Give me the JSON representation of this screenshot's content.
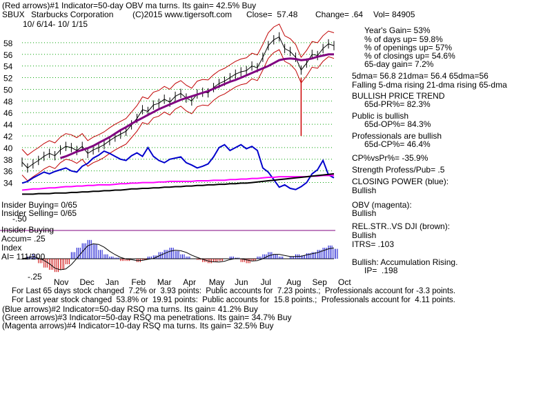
{
  "header": {
    "line1": "(Red arrows)#1 Indicator=50-day OBV ma turns. Its gain= 42.5% Buy",
    "ticker": "SBUX",
    "company": "Starbucks Corporation",
    "copyright": "(C)2015 www.tigersoft.com",
    "close": "Close=  57.48",
    "change": "Change= .64",
    "vol": "Vol= 84905",
    "daterange": "10/ 6/14- 10/ 1/15"
  },
  "stats": {
    "years_gain": "Year's Gain= 53%",
    "pct_days_up": "% of days up= 59.8%",
    "pct_openings_up": "% of openings up= 57%",
    "pct_closings_up": "% of closings up= 54.6%",
    "gain_65": "65-day gain= 7.2%",
    "dma": "5dma= 56.8 21dma= 56.4 65dma=56",
    "dma_trend": "Falling 5-dma rising 21-dma rising 65-dma",
    "trend_title": "BULLISH PRICE TREND",
    "pr_pct": "65d-PR%= 82.3%",
    "public_title": "Public is bullish",
    "op_pct": "65d-OP%= 84.3%",
    "prof_title": "Professionals are bullish",
    "cp_pct": "65d-CP%= 46.4%",
    "cpvspr": "CP%vsPr%= -35.9%",
    "strength": "Strength Profess/Pub= .5",
    "closing_power": "CLOSING POWER (blue):",
    "closing_power_val": "Bullish",
    "obv": "OBV (magenta):",
    "obv_val": "Bullish",
    "relstr": "REL.STR..VS DJI (brown):",
    "relstr_val": "Bullish",
    "itrs": "ITRS= .103",
    "accum": "Bullish: Accumulation Rising.",
    "ip": "IP=  .198"
  },
  "left_labels": {
    "insider1": "Insider Buying= 0/65",
    "insider2": "Insider Selling= 0/65",
    "insider_line_val": "-.50",
    "insider_buying": "Insider Buying",
    "accum": "Accum= .25",
    "index": "Index",
    "ai": "AI= 111/200",
    "neg25": "-.25"
  },
  "footer": {
    "l1": "For Last 65 days stock changed  7.2% or  3.93 points:  Public accounts for  7.23 points.;  Professionals account for -3.3 points.",
    "l2": "For Last year stock changed  53.8% or  19.91 points:  Public accounts for  15.8 points.;  Professionals account for  4.11 points.",
    "l3": "(Blue arrows)#2 Indicator=50-day RSQ ma turns. Its gain= 41.2% Buy",
    "l4": "(Green arrows)#3 Indicator=50-day RSQ ma penetrations. Its gain= 34.7% Buy",
    "l5": "(Magenta arrows)#4 Indicator=10-day RSQ ma turns. Its gain= 32.5% Buy"
  },
  "colors": {
    "price": "#000000",
    "ma65": "#800080",
    "band": "#c00000",
    "closing_power": "#0000cc",
    "obv": "#ff00ff",
    "relstr": "#000000",
    "ai_pos": "#0000cc",
    "ai_neg": "#cc0000",
    "grid": "#00a000"
  },
  "chart_data": {
    "type": "line",
    "title": "SBUX  Starbucks Corporation",
    "x_ticks": [
      "Nov",
      "Dec",
      "Jan",
      "Feb",
      "Mar",
      "Apr",
      "May",
      "Jun",
      "Jul",
      "Aug",
      "Sep",
      "Oct"
    ],
    "y_ticks": [
      34,
      36,
      38,
      40,
      42,
      44,
      46,
      48,
      50,
      52,
      54,
      56,
      58
    ],
    "ylim": [
      33,
      60
    ],
    "series": [
      {
        "key": "price",
        "values": [
          37.5,
          36.5,
          37.2,
          37.8,
          38.5,
          39.0,
          38.6,
          39.6,
          40.2,
          40.0,
          39.5,
          40.2,
          39.0,
          39.6,
          40.0,
          40.5,
          41.2,
          41.8,
          42.3,
          42.8,
          43.9,
          45.0,
          46.5,
          46.2,
          47.3,
          47.6,
          48.3,
          47.8,
          48.8,
          49.3,
          48.5,
          48.0,
          49.2,
          49.5,
          49.4,
          50.3,
          51.0,
          51.4,
          52.0,
          52.6,
          53.0,
          53.2,
          54.0,
          53.7,
          55.5,
          57.5,
          58.5,
          59.0,
          57.0,
          56.5,
          55.5,
          53.3,
          54.5,
          56.0,
          55.8,
          57.0,
          57.8,
          57.5
        ]
      },
      {
        "key": "ma65",
        "values": [
          null,
          null,
          null,
          null,
          null,
          null,
          null,
          38.2,
          38.5,
          38.9,
          39.3,
          39.6,
          39.9,
          40.3,
          40.8,
          41.3,
          41.8,
          42.4,
          43.0,
          43.5,
          44.1,
          44.6,
          45.1,
          45.6,
          46.1,
          46.6,
          47.0,
          47.4,
          47.8,
          48.2,
          48.5,
          48.8,
          49.1,
          49.4,
          49.7,
          50.1,
          50.5,
          50.9,
          51.3,
          51.6,
          52.0,
          52.4,
          52.8,
          53.2,
          53.6,
          54.0,
          54.5,
          55.0,
          55.2,
          55.3,
          55.2,
          55.0,
          55.1,
          55.3,
          55.6,
          55.8,
          56.0,
          56.0
        ]
      },
      {
        "key": "closing_power",
        "values": [
          33.9,
          34.2,
          34.8,
          35.3,
          35.8,
          35.5,
          35.9,
          36.2,
          36.5,
          36.0,
          35.8,
          36.8,
          37.3,
          38.2,
          38.7,
          39.4,
          39.0,
          38.5,
          38.0,
          37.8,
          38.6,
          39.1,
          38.5,
          40.0,
          38.5,
          37.8,
          37.4,
          38.0,
          38.2,
          38.4,
          37.4,
          37.0,
          36.5,
          36.8,
          37.2,
          38.4,
          40.0,
          40.5,
          39.5,
          40.0,
          40.5,
          39.8,
          40.2,
          39.5,
          36.5,
          35.8,
          34.5,
          33.2,
          33.6,
          33.0,
          32.8,
          33.3,
          34.0,
          35.5,
          36.2,
          37.8,
          35.3,
          34.8
        ]
      },
      {
        "key": "obv",
        "values": [
          32.7,
          32.8,
          32.9,
          32.9,
          33.0,
          33.1,
          33.1,
          33.2,
          33.3,
          33.3,
          33.4,
          33.4,
          33.5,
          33.5,
          33.6,
          33.6,
          33.6,
          33.7,
          33.8,
          33.8,
          33.9,
          33.9,
          34.0,
          34.0,
          34.0,
          34.1,
          34.1,
          34.2,
          34.2,
          34.2,
          34.2,
          34.2,
          34.3,
          34.3,
          34.3,
          34.4,
          34.4,
          34.4,
          34.5,
          34.5,
          34.6,
          34.6,
          34.7,
          34.7,
          34.8,
          34.9,
          34.9,
          35.0,
          35.0,
          35.0,
          35.0,
          35.0,
          35.0,
          35.1,
          35.1,
          35.2,
          35.2,
          35.2
        ]
      },
      {
        "key": "relstr",
        "values": [
          32.0,
          32.0,
          32.0,
          32.1,
          32.1,
          32.1,
          32.2,
          32.2,
          32.2,
          32.3,
          32.3,
          32.4,
          32.4,
          32.5,
          32.5,
          32.6,
          32.6,
          32.7,
          32.7,
          32.8,
          32.9,
          32.9,
          33.0,
          33.0,
          33.1,
          33.1,
          33.2,
          33.2,
          33.3,
          33.3,
          33.4,
          33.4,
          33.5,
          33.5,
          33.6,
          33.6,
          33.7,
          33.7,
          33.8,
          33.8,
          33.9,
          33.9,
          34.0,
          34.1,
          34.2,
          34.3,
          34.4,
          34.5,
          34.6,
          34.7,
          34.8,
          34.9,
          35.0,
          35.1,
          35.2,
          35.3,
          35.4,
          35.5
        ]
      }
    ],
    "ai_index": {
      "ylim": [
        -0.25,
        0.25
      ],
      "values": [
        0.0,
        0.02,
        0.04,
        -0.04,
        -0.08,
        -0.1,
        -0.12,
        -0.1,
        -0.05,
        0.06,
        0.1,
        0.14,
        0.17,
        0.13,
        0.08,
        0.04,
        0.02,
        0.01,
        -0.02,
        -0.02,
        0.0,
        -0.03,
        -0.01,
        0.02,
        0.03,
        0.06,
        0.08,
        0.1,
        0.07,
        0.04,
        0.02,
        0.0,
        -0.01,
        -0.03,
        -0.04,
        -0.03,
        -0.02,
        0.0,
        0.02,
        0.01,
        -0.03,
        -0.04,
        -0.02,
        0.02,
        0.04,
        0.06,
        0.04,
        0.02,
        0.0,
        0.02,
        0.04,
        0.03,
        0.05,
        0.06,
        0.08,
        0.1,
        0.12,
        0.09
      ]
    }
  }
}
